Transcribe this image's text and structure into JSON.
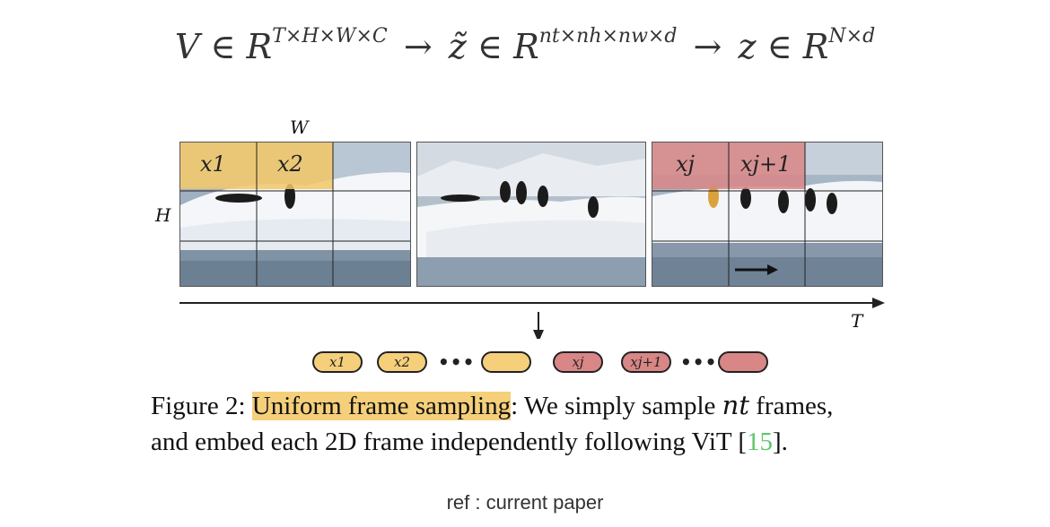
{
  "formula": {
    "v": "V ∈ R",
    "v_sup": "T×H×W×C",
    "arrow1": "→",
    "z_tilde": "z̃ ∈ R",
    "z_tilde_sup": "nt×nh×nw×d",
    "arrow2": "→",
    "z": "z ∈ R",
    "z_sup": "N×d"
  },
  "diagram": {
    "w_label": "W",
    "h_label": "H",
    "t_label": "T",
    "frame1_tokens": [
      "x1",
      "x2"
    ],
    "frame3_tokens": [
      "xj",
      "xj+1"
    ],
    "sequence": {
      "yellow_tokens": [
        "x1",
        "x2"
      ],
      "red_tokens": [
        "xj",
        "xj+1"
      ],
      "ellipsis": "•••"
    },
    "colors": {
      "yellow": "#f5cf7a",
      "red": "#d88686",
      "cite_green": "#5fc66a"
    }
  },
  "caption": {
    "prefix": "Figure 2: ",
    "highlight": "Uniform frame sampling",
    "text1": ": We simply sample ",
    "nt": "nt",
    "text2": " frames,",
    "line2_a": "and embed each 2D frame independently following ViT [",
    "cite": "15",
    "line2_b": "]."
  },
  "ref": "ref : current paper"
}
